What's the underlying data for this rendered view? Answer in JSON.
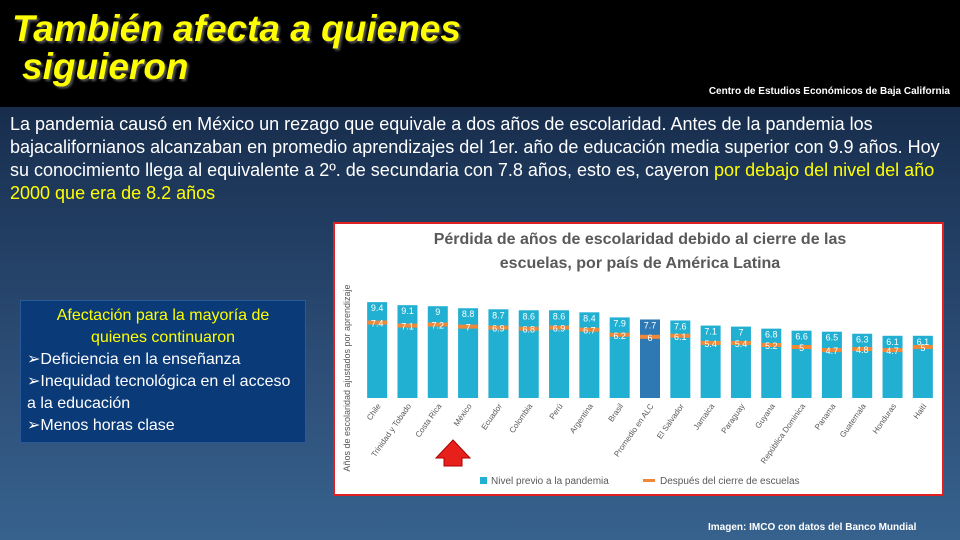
{
  "slide": {
    "title_line1": "También afecta a quienes",
    "title_line2": "siguieron",
    "source_top": "Centro de Estudios Económicos de Baja California",
    "paragraph": "La pandemia causó en México un rezago que equivale a dos años de escolaridad. Antes de la pandemia los bajacalifornianos alcanzaban en promedio aprendizajes del 1er. año de educación media superior con 9.9 años. Hoy su conocimiento llega al equivalente a 2º. de secundaria con 7.8 años, esto es, cayeron",
    "paragraph_highlight": "por debajo del nivel del año 2000 que era de 8.2 años",
    "box_title": "Afectación para la mayoría de quienes continuaron",
    "box_items": [
      "Deficiencia en la enseñanza",
      "Inequidad tecnológica en el acceso a la educación",
      "Menos horas clase"
    ],
    "source_bottom": "Imagen: IMCO con datos del Banco Mundial"
  },
  "chart_data": {
    "type": "bar",
    "title": "Pérdida de años de escolaridad debido al cierre de las escuelas, por país de América Latina",
    "y_label": "Años de escolaridad ajustados por aprendizaje",
    "categories": [
      "Chile",
      "Trinidad y Tobado",
      "Costa Rica",
      "México",
      "Ecuador",
      "Colombia",
      "Perú",
      "Argentina",
      "Brasil",
      "Promedio en ALC",
      "El Salvador",
      "Jamaica",
      "Paraguay",
      "Guyana",
      "República Dominica",
      "Panama",
      "Guatemala",
      "Honduras",
      "Haití"
    ],
    "series": [
      {
        "name": "Nivel previo a la pandemia",
        "color": "#22b0d2",
        "highlight_color": "#2e78b4",
        "highlight": [
          9
        ],
        "values": [
          9.4,
          9.1,
          9,
          8.8,
          8.7,
          8.6,
          8.6,
          8.4,
          7.9,
          7.7,
          7.6,
          7.1,
          7,
          6.8,
          6.6,
          6.5,
          6.3,
          6.1,
          6.1
        ]
      },
      {
        "name": "Después del cierre de escuelas",
        "color": "#f0883a",
        "values": [
          7.4,
          7.1,
          7.2,
          7,
          6.9,
          6.8,
          6.9,
          6.7,
          6.2,
          6,
          6.1,
          5.4,
          5.4,
          5.2,
          5,
          4.7,
          4.8,
          4.7,
          5
        ]
      }
    ],
    "ylim": [
      0,
      10
    ]
  }
}
